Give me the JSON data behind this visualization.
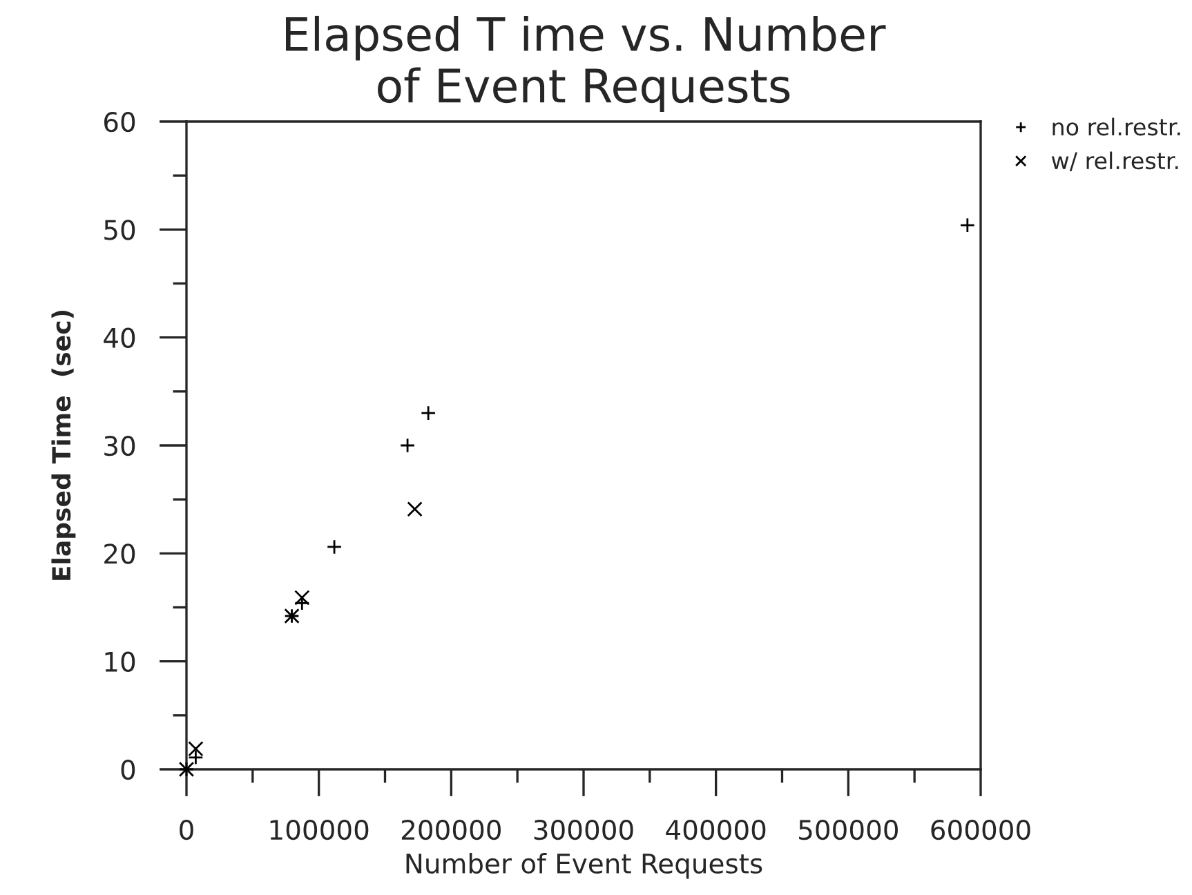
{
  "chart_data": {
    "type": "scatter",
    "title": "Elapsed T ime vs. Number\nof Event Requests",
    "xlabel": "Number of Event Requests",
    "ylabel": "Elapsed Time  (sec)",
    "series": [
      {
        "name": "no rel.restr.",
        "color": "#000000",
        "marker": "plus",
        "x": [
          0,
          7000,
          79600,
          87300,
          111700,
          167000,
          182700,
          590000
        ],
        "values": [
          0,
          1.1,
          14.2,
          15.4,
          20.6,
          30.0,
          33.0,
          50.4
        ]
      },
      {
        "name": "w/ rel.restr.",
        "color": "#000000",
        "marker": "cross",
        "x": [
          0,
          7000,
          79600,
          87300,
          172500
        ],
        "values": [
          0,
          1.9,
          14.2,
          15.9,
          24.1
        ]
      }
    ],
    "xlim": [
      0,
      600000
    ],
    "ylim": [
      0,
      60
    ],
    "xticks": [
      0,
      {
        "value": 50000,
        "label": null
      },
      100000,
      {
        "value": 150000,
        "label": null
      },
      200000,
      {
        "value": 250000,
        "label": null
      },
      300000,
      {
        "value": 350000,
        "label": null
      },
      400000,
      {
        "value": 450000,
        "label": null
      },
      500000,
      {
        "value": 550000,
        "label": null
      },
      600000
    ],
    "yticks": [
      0,
      {
        "value": 5,
        "label": null
      },
      10,
      {
        "value": 15,
        "label": null
      },
      20,
      {
        "value": 25,
        "label": null
      },
      30,
      {
        "value": 35,
        "label": null
      },
      40,
      {
        "value": 45,
        "label": null
      },
      50,
      {
        "value": 55,
        "label": null
      },
      60
    ],
    "legend": "top right",
    "grid": false
  }
}
